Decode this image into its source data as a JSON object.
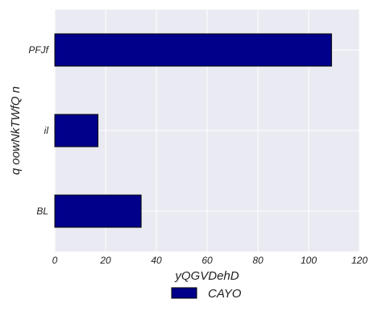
{
  "chart_data": {
    "type": "bar",
    "orientation": "horizontal",
    "categories": [
      "PFJf",
      "il",
      "BL"
    ],
    "series": [
      {
        "name": "CAYO",
        "values": [
          109,
          17,
          34
        ],
        "color": "#00008b"
      }
    ],
    "title": "",
    "xlabel": "yQGVDehD",
    "ylabel": "q oowNkTWfQ n",
    "xlim": [
      0,
      120
    ],
    "xticks": [
      0,
      20,
      40,
      60,
      80,
      100,
      120
    ],
    "xtick_labels": [
      "0",
      "20",
      "40",
      "60",
      "80",
      "100",
      "120"
    ],
    "grid": true,
    "legend": "bottom-center",
    "background_color": "#eaeaf2",
    "grid_color": "#ffffff"
  }
}
